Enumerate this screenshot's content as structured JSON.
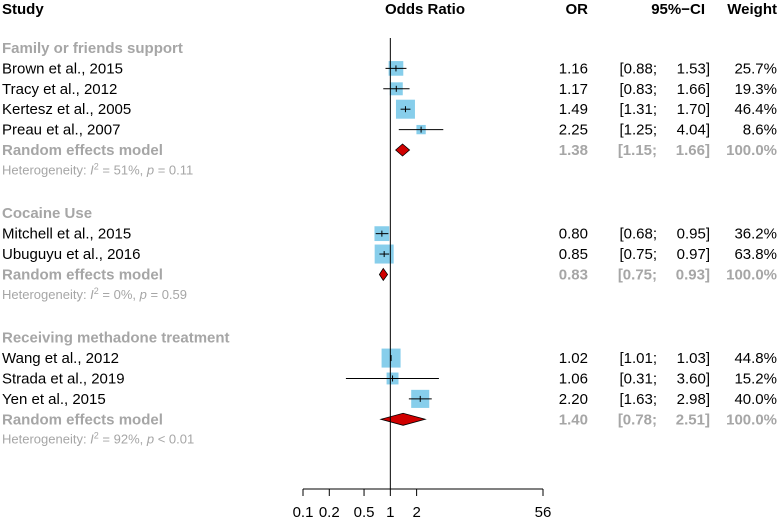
{
  "headers": {
    "study": "Study",
    "odds_ratio": "Odds Ratio",
    "or": "OR",
    "ci": "95%−CI",
    "weight": "Weight"
  },
  "chart_data": {
    "type": "forest",
    "title": "Odds Ratio",
    "xscale": "log",
    "xlim": [
      0.1,
      56
    ],
    "xticks": [
      {
        "value": 0.1,
        "label": "0.1"
      },
      {
        "value": 0.2,
        "label": "0.2"
      },
      {
        "value": 0.5,
        "label": "0.5"
      },
      {
        "value": 1,
        "label": "1"
      },
      {
        "value": 2,
        "label": "2"
      },
      {
        "value": 56,
        "label": "56"
      }
    ],
    "reference_line": 1,
    "groups": [
      {
        "name": "Family or friends support",
        "studies": [
          {
            "study": "Brown et al., 2015",
            "or": 1.16,
            "lo": 0.88,
            "hi": 1.53,
            "weight": 25.7,
            "or_text": "1.16",
            "lo_text": "[0.88;",
            "hi_text": "1.53]",
            "weight_text": "25.7%"
          },
          {
            "study": "Tracy et al., 2012",
            "or": 1.17,
            "lo": 0.83,
            "hi": 1.66,
            "weight": 19.3,
            "or_text": "1.17",
            "lo_text": "[0.83;",
            "hi_text": "1.66]",
            "weight_text": "19.3%"
          },
          {
            "study": "Kertesz et al., 2005",
            "or": 1.49,
            "lo": 1.31,
            "hi": 1.7,
            "weight": 46.4,
            "or_text": "1.49",
            "lo_text": "[1.31;",
            "hi_text": "1.70]",
            "weight_text": "46.4%"
          },
          {
            "study": "Preau et al., 2007",
            "or": 2.25,
            "lo": 1.25,
            "hi": 4.04,
            "weight": 8.6,
            "or_text": "2.25",
            "lo_text": "[1.25;",
            "hi_text": "4.04]",
            "weight_text": "8.6%"
          }
        ],
        "summary": {
          "label": "Random effects model",
          "or": 1.38,
          "lo": 1.15,
          "hi": 1.66,
          "or_text": "1.38",
          "lo_text": "[1.15;",
          "hi_text": "1.66]",
          "weight_text": "100.0%"
        },
        "heterogeneity": {
          "prefix": "Heterogeneity: ",
          "i": "I",
          "sup": "2",
          "i2": " = 51%, ",
          "p": "p",
          "p_value": " = 0.11"
        }
      },
      {
        "name": "Cocaine Use",
        "studies": [
          {
            "study": "Mitchell et al., 2015",
            "or": 0.8,
            "lo": 0.68,
            "hi": 0.95,
            "weight": 36.2,
            "or_text": "0.80",
            "lo_text": "[0.68;",
            "hi_text": "0.95]",
            "weight_text": "36.2%"
          },
          {
            "study": "Ubuguyu et al., 2016",
            "or": 0.85,
            "lo": 0.75,
            "hi": 0.97,
            "weight": 63.8,
            "or_text": "0.85",
            "lo_text": "[0.75;",
            "hi_text": "0.97]",
            "weight_text": "63.8%"
          }
        ],
        "summary": {
          "label": "Random effects model",
          "or": 0.83,
          "lo": 0.75,
          "hi": 0.93,
          "or_text": "0.83",
          "lo_text": "[0.75;",
          "hi_text": "0.93]",
          "weight_text": "100.0%"
        },
        "heterogeneity": {
          "prefix": "Heterogeneity: ",
          "i": "I",
          "sup": "2",
          "i2": " = 0%, ",
          "p": "p",
          "p_value": " = 0.59"
        }
      },
      {
        "name": "Receiving methadone treatment",
        "studies": [
          {
            "study": "Wang et al., 2012",
            "or": 1.02,
            "lo": 1.01,
            "hi": 1.03,
            "weight": 44.8,
            "or_text": "1.02",
            "lo_text": "[1.01;",
            "hi_text": "1.03]",
            "weight_text": "44.8%"
          },
          {
            "study": "Strada et al., 2019",
            "or": 1.06,
            "lo": 0.31,
            "hi": 3.6,
            "weight": 15.2,
            "or_text": "1.06",
            "lo_text": "[0.31;",
            "hi_text": "3.60]",
            "weight_text": "15.2%"
          },
          {
            "study": "Yen et al., 2015",
            "or": 2.2,
            "lo": 1.63,
            "hi": 2.98,
            "weight": 40.0,
            "or_text": "2.20",
            "lo_text": "[1.63;",
            "hi_text": "2.98]",
            "weight_text": "40.0%"
          }
        ],
        "summary": {
          "label": "Random effects model",
          "or": 1.4,
          "lo": 0.78,
          "hi": 2.51,
          "or_text": "1.40",
          "lo_text": "[0.78;",
          "hi_text": "2.51]",
          "weight_text": "100.0%"
        },
        "heterogeneity": {
          "prefix": "Heterogeneity: ",
          "i": "I",
          "sup": "2",
          "i2": " = 92%, ",
          "p": "p",
          "p_value": " < 0.01"
        }
      }
    ],
    "colors": {
      "box": "#87ceeb",
      "diamond": "#d00000",
      "group_text": "#a6a6a6"
    }
  }
}
